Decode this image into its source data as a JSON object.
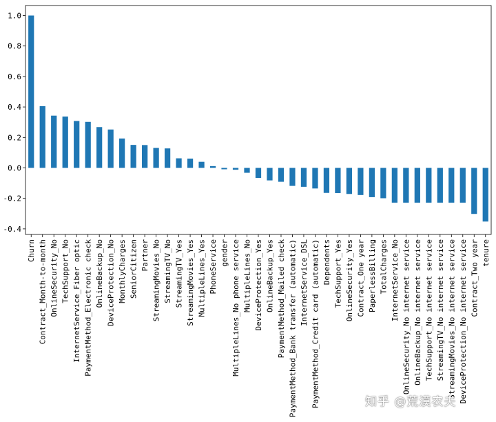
{
  "chart_data": {
    "type": "bar",
    "title": "",
    "xlabel": "",
    "ylabel": "",
    "ylim": [
      -0.42,
      1.03
    ],
    "yticks": [
      1.0,
      0.8,
      0.6,
      0.4,
      0.2,
      0.0,
      -0.2,
      -0.4
    ],
    "ytick_labels": [
      "1.0",
      "0.8",
      "0.6",
      "0.4",
      "0.2",
      "0.0",
      "-0.2",
      "-0.4"
    ],
    "bar_color": "#1f77b4",
    "grid": false,
    "categories": [
      "Churn",
      "Contract_Month-to-month",
      "OnlineSecurity_No",
      "TechSupport_No",
      "InternetService_Fiber optic",
      "PaymentMethod_Electronic check",
      "OnlineBackup_No",
      "DeviceProtection_No",
      "MonthlyCharges",
      "SeniorCitizen",
      "Partner",
      "StreamingMovies_No",
      "StreamingTV_No",
      "StreamingTV_Yes",
      "StreamingMovies_Yes",
      "MultipleLines_Yes",
      "PhoneService",
      "gender",
      "MultipleLines_No phone service",
      "MultipleLines_No",
      "DeviceProtection_Yes",
      "OnlineBackup_Yes",
      "PaymentMethod_Mailed check",
      "PaymentMethod_Bank transfer (automatic)",
      "InternetService_DSL",
      "PaymentMethod_Credit card (automatic)",
      "Dependents",
      "TechSupport_Yes",
      "OnlineSecurity_Yes",
      "Contract_One year",
      "PaperlessBilling",
      "TotalCharges",
      "InternetService_No",
      "OnlineSecurity_No internet service",
      "OnlineBackup_No internet service",
      "TechSupport_No internet service",
      "StreamingTV_No internet service",
      "StreamingMovies_No internet service",
      "DeviceProtection_No internet service",
      "Contract_Two year",
      "tenure"
    ],
    "values": [
      1.0,
      0.405,
      0.343,
      0.337,
      0.308,
      0.302,
      0.268,
      0.252,
      0.193,
      0.151,
      0.15,
      0.131,
      0.128,
      0.063,
      0.061,
      0.04,
      0.012,
      -0.009,
      -0.012,
      -0.032,
      -0.066,
      -0.082,
      -0.091,
      -0.118,
      -0.124,
      -0.135,
      -0.164,
      -0.165,
      -0.171,
      -0.178,
      -0.192,
      -0.199,
      -0.228,
      -0.228,
      -0.228,
      -0.228,
      -0.228,
      -0.228,
      -0.228,
      -0.302,
      -0.352
    ]
  },
  "watermark": "知乎 @荒漠农夫"
}
